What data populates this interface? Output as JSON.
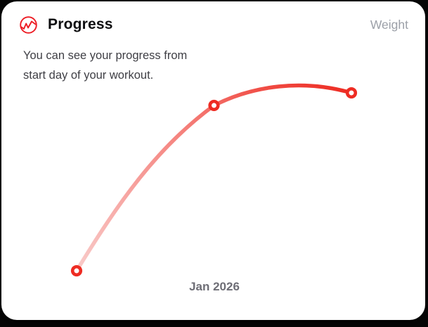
{
  "card": {
    "header": {
      "icon": "activity-pulse-icon",
      "title": "Progress",
      "metric_label": "Weight"
    },
    "description": {
      "lines": [
        "You can see your progress from",
        "start day of your workout."
      ]
    },
    "x_axis_label": "Jan 2026"
  },
  "colors": {
    "accent_red": "#ee2c23",
    "line_gradient_start": "#f9cbc9",
    "line_gradient_mid": "#f5827d",
    "line_gradient_late": "#f04a42",
    "line_gradient_end": "#ee2c23",
    "marker_fill": "#ffffff",
    "card_background": "#ffffff",
    "page_background": "#060606",
    "title_text": "#0d0d0f",
    "muted_text": "#9ca0a8",
    "body_text": "#3e3e44",
    "axis_text": "#6e6e76"
  },
  "chart_data": {
    "type": "line",
    "title": "Progress",
    "series": [
      {
        "name": "Weight",
        "x": [
          0,
          1,
          2
        ],
        "values": [
          10,
          89,
          95
        ]
      }
    ],
    "x_tick_labels": [
      "Jan 2026"
    ],
    "xlabel": "",
    "ylabel": "",
    "xlim": [
      0,
      2
    ],
    "ylim": [
      0,
      100
    ],
    "axes_hidden": true,
    "grid": false,
    "legend": "none",
    "smooth": true,
    "marker_style": "open-circle",
    "line_style": "gradient-light-to-solid-red"
  }
}
